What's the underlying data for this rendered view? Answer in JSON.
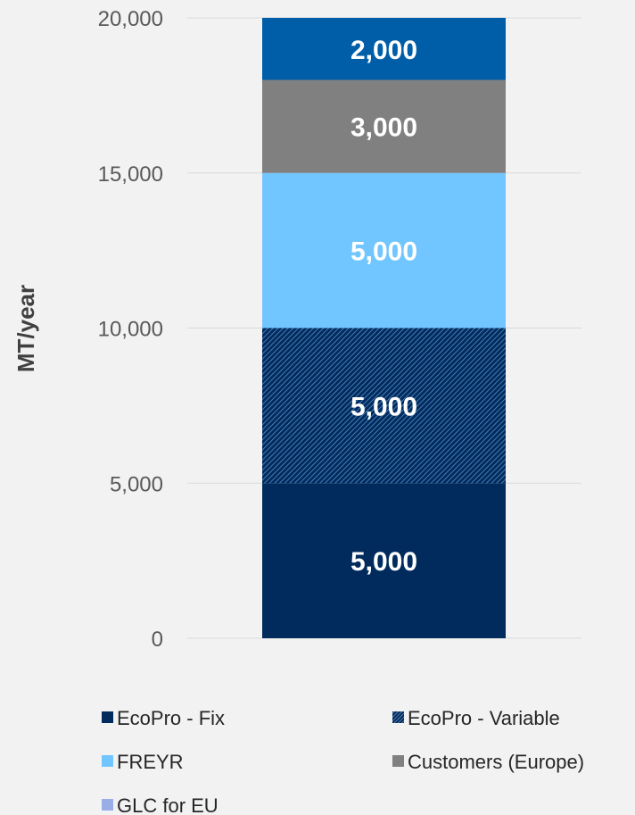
{
  "chart_data": {
    "type": "bar",
    "stacked": true,
    "categories": [
      ""
    ],
    "title": "",
    "xlabel": "",
    "ylabel": "MT/year",
    "ylim": [
      0,
      20000
    ],
    "yticks": [
      0,
      5000,
      10000,
      15000,
      20000
    ],
    "ytick_labels": [
      "0",
      "5,000",
      "10,000",
      "15,000",
      "20,000"
    ],
    "grid": true,
    "legend_position": "bottom",
    "series": [
      {
        "name": "EcoPro - Fix",
        "values": [
          5000
        ],
        "label": "5,000",
        "color": "#002b5c",
        "pattern": "solid"
      },
      {
        "name": "EcoPro - Variable",
        "values": [
          5000
        ],
        "label": "5,000",
        "color": "#002b5c",
        "pattern": "hatched"
      },
      {
        "name": "FREYR",
        "values": [
          5000
        ],
        "label": "5,000",
        "color": "#72c6ff",
        "pattern": "solid"
      },
      {
        "name": "Customers (Europe)",
        "values": [
          3000
        ],
        "label": "3,000",
        "color": "#808080",
        "pattern": "solid"
      },
      {
        "name": "GLC for EU",
        "values": [
          2000
        ],
        "label": "2,000",
        "color": "#005ea8",
        "legend_color": "#99aee6",
        "pattern": "solid"
      }
    ]
  }
}
